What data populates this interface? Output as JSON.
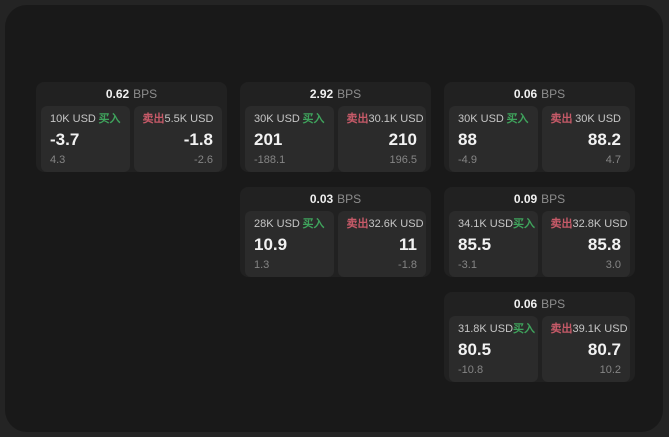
{
  "labels": {
    "buy": "买入",
    "sell": "卖出",
    "bps_unit": "BPS"
  },
  "colors": {
    "buy_green": "#3fa35c",
    "sell_red": "#c65a68",
    "panel_bg": "#191919",
    "card_bg": "#212121",
    "pane_bg": "#2b2b2b"
  },
  "cards": [
    {
      "col": 1,
      "row": 1,
      "bps": "0.62",
      "buy": {
        "size": "10K USD",
        "price": "-3.7",
        "change": "4.3"
      },
      "sell": {
        "size": "5.5K USD",
        "price": "-1.8",
        "change": "-2.6"
      }
    },
    {
      "col": 2,
      "row": 1,
      "bps": "2.92",
      "buy": {
        "size": "30K USD",
        "price": "201",
        "change": "-188.1"
      },
      "sell": {
        "size": "30.1K USD",
        "price": "210",
        "change": "196.5"
      }
    },
    {
      "col": 3,
      "row": 1,
      "bps": "0.06",
      "buy": {
        "size": "30K USD",
        "price": "88",
        "change": "-4.9"
      },
      "sell": {
        "size": "30K USD",
        "price": "88.2",
        "change": "4.7"
      }
    },
    {
      "col": 2,
      "row": 2,
      "bps": "0.03",
      "buy": {
        "size": "28K USD",
        "price": "10.9",
        "change": "1.3"
      },
      "sell": {
        "size": "32.6K USD",
        "price": "11",
        "change": "-1.8"
      }
    },
    {
      "col": 3,
      "row": 2,
      "bps": "0.09",
      "buy": {
        "size": "34.1K USD",
        "price": "85.5",
        "change": "-3.1"
      },
      "sell": {
        "size": "32.8K USD",
        "price": "85.8",
        "change": "3.0"
      }
    },
    {
      "col": 3,
      "row": 3,
      "bps": "0.06",
      "buy": {
        "size": "31.8K USD",
        "price": "80.5",
        "change": "-10.8"
      },
      "sell": {
        "size": "39.1K USD",
        "price": "80.7",
        "change": "10.2"
      }
    }
  ]
}
